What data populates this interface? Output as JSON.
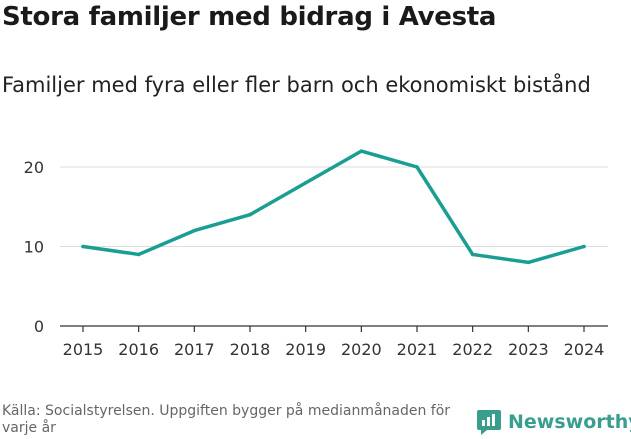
{
  "header": {
    "title": "Stora familjer med bidrag i Avesta",
    "subtitle": "Familjer med fyra eller fler barn och ekonomiskt bistånd"
  },
  "footer": {
    "source": "Källa: Socialstyrelsen. Uppgiften bygger på medianmånaden för varje år",
    "brand": "Newsworthy",
    "brand_icon": "newsworthy-logo-icon"
  },
  "colors": {
    "line": "#1a9e94",
    "grid": "#dddddd",
    "axis": "#333333",
    "brand": "#3a9e8f"
  },
  "chart_data": {
    "type": "line",
    "title": "Stora familjer med bidrag i Avesta",
    "subtitle": "Familjer med fyra eller fler barn och ekonomiskt bistånd",
    "xlabel": "",
    "ylabel": "",
    "categories": [
      "2015",
      "2016",
      "2017",
      "2018",
      "2019",
      "2020",
      "2021",
      "2022",
      "2023",
      "2024"
    ],
    "series": [
      {
        "name": "Familjer med fyra eller fler barn och ekonomiskt bistånd",
        "values": [
          10,
          9,
          12,
          14,
          18,
          22,
          20,
          9,
          8,
          10
        ]
      }
    ],
    "ylim": [
      0,
      22
    ],
    "yticks": [
      0,
      10,
      20
    ],
    "ytick_labels": [
      "0",
      "10",
      "20"
    ],
    "grid": true,
    "legend": "none"
  }
}
